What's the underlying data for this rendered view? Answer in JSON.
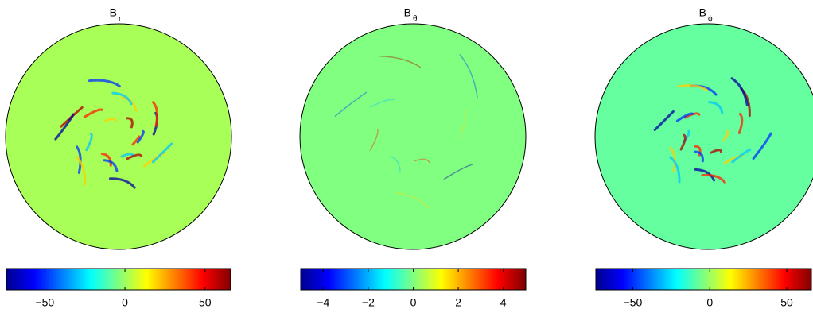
{
  "chart_data": [
    {
      "type": "disk",
      "title": "B",
      "title_subscript": "r",
      "color": "#a8ff58",
      "clim": [
        -74,
        66
      ],
      "cticks": [
        {
          "value": -50,
          "label": "−50"
        },
        0,
        50
      ]
    },
    {
      "type": "disk",
      "title": "B",
      "title_subscript": "θ",
      "color": "#80ff80",
      "clim": [
        -5,
        5
      ],
      "cticks": [
        {
          "value": -4,
          "label": "−4"
        },
        {
          "value": -2,
          "label": "−2"
        },
        0,
        2,
        4
      ]
    },
    {
      "type": "disk",
      "title": "B",
      "title_subscript": "ϕ",
      "color": "#66ffa0",
      "clim": [
        -74,
        66
      ],
      "cticks": [
        {
          "value": -50,
          "label": "−50"
        },
        0,
        50
      ]
    }
  ]
}
